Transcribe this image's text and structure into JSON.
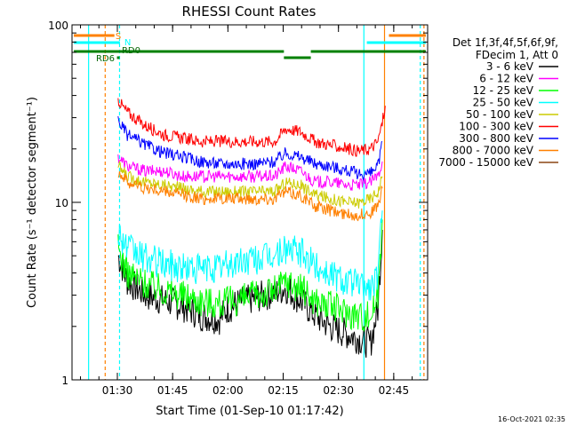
{
  "chart_data": {
    "type": "line",
    "title": "RHESSI Count Rates",
    "xlabel": "Start Time (01-Sep-10 01:17:42)",
    "ylabel": "Count Rate (s⁻¹ detector segment⁻¹)",
    "x_unit": "minutes since 01:17:42",
    "xlim": [
      0,
      96.5
    ],
    "ylim": [
      1,
      100
    ],
    "yscale": "log",
    "x_ticks": [
      {
        "x": 12.3,
        "label": "01:30"
      },
      {
        "x": 27.3,
        "label": "01:45"
      },
      {
        "x": 42.3,
        "label": "02:00"
      },
      {
        "x": 57.3,
        "label": "02:15"
      },
      {
        "x": 72.3,
        "label": "02:30"
      },
      {
        "x": 87.3,
        "label": "02:45"
      }
    ],
    "y_ticks": [
      {
        "y": 1,
        "label": "1"
      },
      {
        "y": 10,
        "label": "10"
      },
      {
        "y": 100,
        "label": "100"
      }
    ],
    "legend": {
      "placement": "right",
      "header": [
        "Det 1f,3f,4f,5f,6f,9f,",
        "FDecim 1, Att 0"
      ]
    },
    "series": [
      {
        "name": "3 - 6 keV",
        "color": "#000000",
        "x": [
          12.5,
          15,
          20,
          25,
          30,
          35,
          40,
          42,
          45,
          50,
          55,
          58,
          62,
          66,
          70,
          75,
          78,
          81,
          83,
          84.2
        ],
        "y": [
          5.0,
          3.6,
          3.0,
          2.8,
          2.6,
          2.3,
          2.2,
          2.5,
          2.7,
          2.9,
          3.1,
          3.3,
          2.8,
          2.3,
          2.0,
          1.8,
          1.7,
          1.6,
          2.5,
          7.0
        ]
      },
      {
        "name": "6 - 12 keV",
        "color": "#ff00ff",
        "x": [
          12.5,
          15,
          20,
          25,
          30,
          35,
          40,
          45,
          50,
          55,
          58,
          62,
          66,
          70,
          75,
          78,
          81,
          83,
          84.2
        ],
        "y": [
          18,
          16,
          15,
          15,
          14,
          14,
          14,
          14,
          14,
          14,
          16,
          15,
          13,
          13,
          12.5,
          12.5,
          13,
          14,
          17
        ]
      },
      {
        "name": "12 - 25 keV",
        "color": "#00ff00",
        "x": [
          12.5,
          15,
          20,
          25,
          30,
          35,
          40,
          45,
          50,
          55,
          58,
          62,
          66,
          70,
          75,
          78,
          81,
          83,
          84.2
        ],
        "y": [
          5.5,
          4.0,
          3.5,
          3.2,
          3.0,
          2.8,
          2.7,
          2.8,
          3.0,
          3.2,
          3.6,
          3.3,
          2.8,
          2.6,
          2.4,
          2.3,
          2.3,
          3.0,
          8.0
        ]
      },
      {
        "name": "25 - 50 keV",
        "color": "#00ffff",
        "x": [
          12.5,
          15,
          20,
          25,
          30,
          35,
          40,
          45,
          50,
          55,
          58,
          62,
          66,
          70,
          75,
          78,
          81,
          83,
          84.2
        ],
        "y": [
          7.0,
          5.5,
          4.8,
          4.5,
          4.3,
          4.2,
          4.3,
          4.6,
          4.8,
          5.0,
          5.5,
          5.2,
          4.4,
          4.0,
          3.6,
          3.4,
          3.3,
          3.8,
          9.0
        ]
      },
      {
        "name": "50 - 100 keV",
        "color": "#cccc00",
        "x": [
          12.5,
          15,
          20,
          25,
          30,
          35,
          40,
          45,
          50,
          55,
          58,
          62,
          66,
          70,
          75,
          78,
          81,
          83,
          84.2
        ],
        "y": [
          16,
          14,
          13,
          12.5,
          12,
          11.5,
          11.5,
          11.5,
          11.5,
          11.5,
          13,
          12.5,
          11,
          10.5,
          10,
          10,
          10.5,
          11.5,
          14
        ]
      },
      {
        "name": "100 - 300 keV",
        "color": "#ff0000",
        "x": [
          12.5,
          14,
          16,
          20,
          25,
          30,
          35,
          40,
          45,
          50,
          55,
          58,
          62,
          66,
          70,
          75,
          78,
          81,
          83,
          84.2,
          85
        ],
        "y": [
          38,
          34,
          31,
          27,
          24,
          23,
          22,
          22,
          22,
          22,
          22,
          26,
          25,
          22,
          21,
          20,
          19.5,
          20,
          22,
          28,
          35
        ]
      },
      {
        "name": "300 - 800 keV",
        "color": "#0000ff",
        "x": [
          12.5,
          15,
          20,
          25,
          30,
          35,
          40,
          45,
          50,
          55,
          58,
          62,
          66,
          70,
          75,
          78,
          81,
          83,
          84.2
        ],
        "y": [
          29,
          24,
          21,
          19,
          18,
          17,
          16.5,
          16.5,
          16.5,
          17,
          19,
          18,
          16.5,
          16,
          15,
          14.5,
          14.5,
          16,
          22
        ]
      },
      {
        "name": "800 - 7000 keV",
        "color": "#ff8000",
        "x": [
          12.5,
          15,
          20,
          25,
          30,
          35,
          40,
          45,
          50,
          55,
          58,
          62,
          66,
          70,
          75,
          78,
          81,
          83,
          84.2
        ],
        "y": [
          15,
          13,
          12,
          11.5,
          11,
          10.5,
          10.5,
          10.5,
          10.5,
          10.5,
          11.5,
          11,
          9.5,
          9,
          8.5,
          8.5,
          8.8,
          9.5,
          12
        ]
      },
      {
        "name": "7000 - 15000 keV",
        "color": "#8b4513",
        "x": [],
        "y": []
      }
    ],
    "annotations": [
      {
        "text": "S",
        "color": "#ff8000"
      },
      {
        "text": "N",
        "color": "#00ffff"
      },
      {
        "text": "RD6",
        "color": "#006400"
      },
      {
        "text": "RD0",
        "color": "#006400"
      }
    ],
    "footer_timestamp": "16-Oct-2021 02:35"
  }
}
